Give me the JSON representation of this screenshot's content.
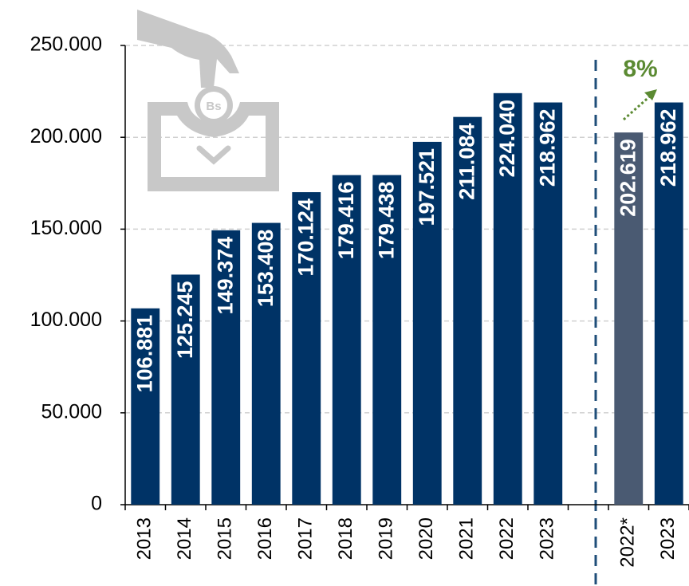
{
  "chart_data": {
    "type": "bar",
    "categories": [
      "2013",
      "2014",
      "2015",
      "2016",
      "2017",
      "2018",
      "2019",
      "2020",
      "2021",
      "2022",
      "2023",
      null,
      "2022*",
      "2023"
    ],
    "values": [
      106881,
      125245,
      149374,
      153408,
      170124,
      179416,
      179438,
      197521,
      211084,
      224040,
      218962,
      null,
      202619,
      218962
    ],
    "value_labels": [
      "106.881",
      "125.245",
      "149.374",
      "153.408",
      "170.124",
      "179.416",
      "179.438",
      "197.521",
      "211.084",
      "224.040",
      "218.962",
      null,
      "202.619",
      "218.962"
    ],
    "colors": [
      "#003366",
      "#003366",
      "#003366",
      "#003366",
      "#003366",
      "#003366",
      "#003366",
      "#003366",
      "#003366",
      "#003366",
      "#003366",
      null,
      "#4a5a72",
      "#003366"
    ],
    "ylim": [
      0,
      250000
    ],
    "yticks": [
      0,
      {
        "value": 50000,
        "label": "50.000"
      },
      {
        "value": 100000,
        "label": "100.000"
      },
      {
        "value": 150000,
        "label": "150.000"
      },
      {
        "value": 200000,
        "label": "200.000"
      },
      {
        "value": 250000,
        "label": "250.000"
      }
    ],
    "grid": true,
    "annotation": "8%",
    "annotation_color": "#5b8a32"
  }
}
